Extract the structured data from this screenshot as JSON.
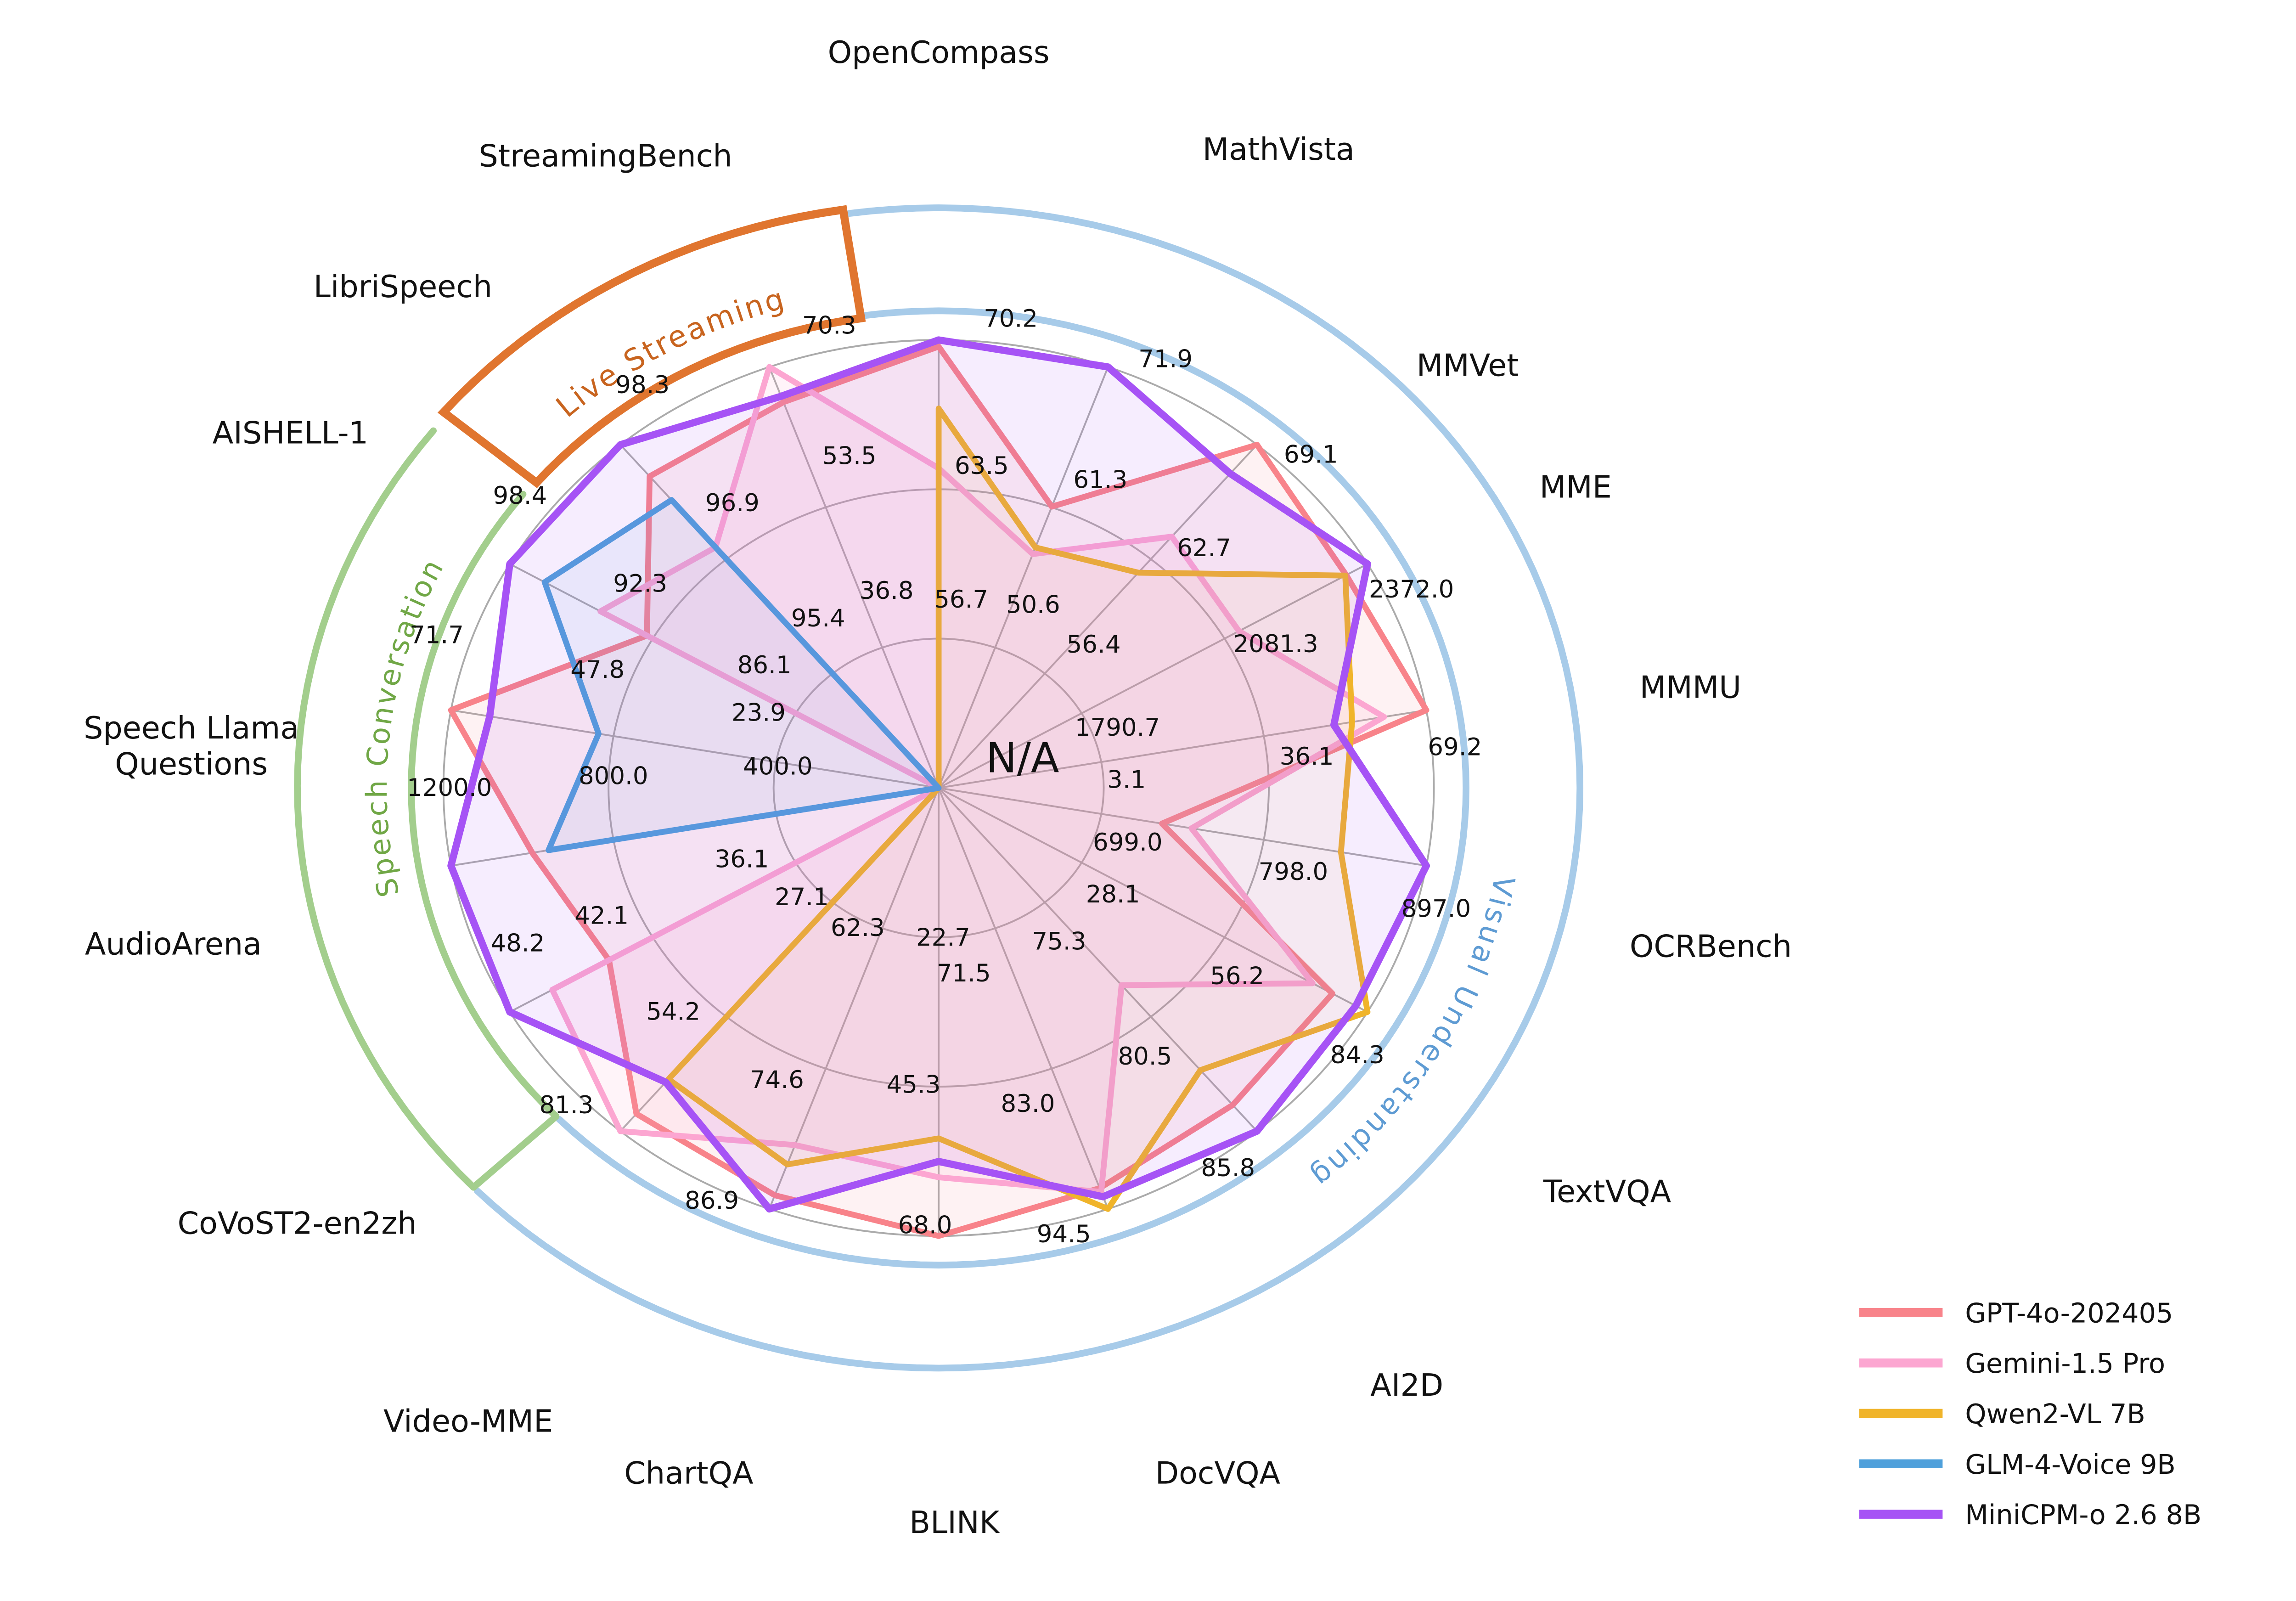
{
  "chart_data": {
    "type": "radar",
    "center_label": "N/A",
    "axes": [
      {
        "name": "OpenCompass",
        "min": 49.95,
        "ticks": [
          56.7,
          63.5,
          70.2
        ]
      },
      {
        "name": "MathVista",
        "min": 39.95,
        "ticks": [
          50.6,
          61.3,
          71.9
        ]
      },
      {
        "name": "MMVet",
        "min": 50.05,
        "ticks": [
          56.4,
          62.7,
          69.1
        ]
      },
      {
        "name": "MME",
        "min": 1500.05,
        "ticks": [
          1790.7,
          2081.3,
          2372.0
        ]
      },
      {
        "name": "MMMU",
        "min": -29.95,
        "ticks": [
          3.1,
          36.1,
          69.2
        ]
      },
      {
        "name": "OCRBench",
        "min": 600.0,
        "ticks": [
          699.0,
          798.0,
          897.0
        ]
      },
      {
        "name": "TextVQA",
        "min": 0.0,
        "ticks": [
          28.1,
          56.2,
          84.3
        ]
      },
      {
        "name": "AI2D",
        "min": 70.05,
        "ticks": [
          75.3,
          80.5,
          85.8
        ]
      },
      {
        "name": "DocVQA",
        "min": 60.0,
        "ticks": [
          71.5,
          83.0,
          94.5
        ]
      },
      {
        "name": "BLINK",
        "min": 0.05,
        "ticks": [
          22.7,
          45.3,
          68.0
        ]
      },
      {
        "name": "ChartQA",
        "min": 50.0,
        "ticks": [
          62.3,
          74.6,
          86.9
        ]
      },
      {
        "name": "Video-MME",
        "min": 0.0,
        "ticks": [
          27.1,
          54.2,
          81.3
        ]
      },
      {
        "name": "CoVoST2-en2zh",
        "min": 30.05,
        "ticks": [
          36.1,
          42.1,
          48.2
        ]
      },
      {
        "name": "AudioArena",
        "min": 0.0,
        "ticks": [
          400.0,
          800.0,
          1200.0
        ]
      },
      {
        "name": "Speech Llama Questions",
        "min": 0.0,
        "ticks": [
          23.9,
          47.8,
          71.7
        ]
      },
      {
        "name": "AISHELL-1",
        "min": 79.95,
        "ticks": [
          86.1,
          92.3,
          98.4
        ]
      },
      {
        "name": "LibriSpeech",
        "min": 93.95,
        "ticks": [
          95.4,
          96.9,
          98.3
        ]
      },
      {
        "name": "StreamingBench",
        "min": 20.05,
        "ticks": [
          36.8,
          53.5,
          70.3
        ]
      }
    ],
    "series": [
      {
        "name": "GPT-4o-202405",
        "color": "#F8838A",
        "values": [
          69.9,
          61.3,
          69.1,
          2328.7,
          69.2,
          736.0,
          77.4,
          84.6,
          92.8,
          68.0,
          85.7,
          77.2,
          44.0,
          1000.0,
          71.7,
          92.5,
          97.9,
          66.1
        ]
      },
      {
        "name": "Gemini-1.5 Pro",
        "color": "#FCA6D1",
        "values": [
          64.4,
          57.7,
          64.0,
          2110.6,
          60.6,
          754.0,
          73.5,
          79.1,
          93.1,
          59.1,
          81.3,
          81.3,
          46.4,
          null,
          null,
          94.5,
          97.0,
          70.3
        ]
      },
      {
        "name": "Qwen2-VL 7B",
        "color": "#F0B42A",
        "values": [
          67.1,
          58.2,
          62.0,
          2326.8,
          54.1,
          845.0,
          84.3,
          83.0,
          94.5,
          53.2,
          83.0,
          69.0,
          null,
          null,
          null,
          null,
          null,
          null
        ]
      },
      {
        "name": "GLM-4-Voice 9B",
        "color": "#4FA0DB",
        "values": [
          null,
          null,
          null,
          null,
          null,
          null,
          null,
          null,
          null,
          null,
          null,
          null,
          null,
          960.0,
          50.0,
          96.9,
          97.6,
          null
        ]
      },
      {
        "name": "MiniCPM-o 2.6 8B",
        "color": "#A653F5",
        "values": [
          70.2,
          71.9,
          67.5,
          2372.0,
          50.4,
          897.0,
          82.0,
          85.8,
          93.5,
          56.7,
          86.9,
          69.7,
          48.2,
          1200.0,
          66.0,
          98.4,
          98.3,
          66.8
        ]
      }
    ],
    "sections": [
      {
        "label": "Visual Understanding",
        "arc_color": "#A7CBE9",
        "text_color": "#5E9BD3",
        "start_deg": 352,
        "end_deg": 226,
        "style": "double-arc"
      },
      {
        "label": "Speech Conversation",
        "arc_color": "#A3CE8D",
        "text_color": "#70A746",
        "start_deg": 226.5,
        "end_deg": 308,
        "style": "double-arc-connector"
      },
      {
        "label": "Live Streaming",
        "arc_color": "#E0752F",
        "text_color": "#C8641F",
        "start_deg": 310,
        "end_deg": 351.5,
        "style": "box"
      }
    ],
    "grid_color": "#ABABAB",
    "na_color": "#111111",
    "legend": [
      "GPT-4o-202405",
      "Gemini-1.5 Pro",
      "Qwen2-VL 7B",
      "GLM-4-Voice 9B",
      "MiniCPM-o 2.6 8B"
    ]
  }
}
